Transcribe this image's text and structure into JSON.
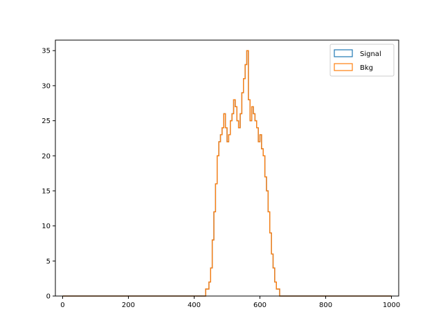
{
  "chart_data": {
    "type": "histogram",
    "title": "",
    "xlabel": "",
    "ylabel": "",
    "xlim": [
      -22,
      1022
    ],
    "ylim": [
      0,
      36.5
    ],
    "xticks": [
      0,
      200,
      400,
      600,
      800,
      1000
    ],
    "yticks": [
      0,
      5,
      10,
      15,
      20,
      25,
      30,
      35
    ],
    "grid": false,
    "legend_position": "top-right",
    "series": [
      {
        "name": "Signal",
        "color": "#1f77b4",
        "x": [
          430,
          435,
          440,
          445,
          450,
          455,
          460,
          465,
          470,
          475,
          480,
          485,
          490,
          495,
          500,
          505,
          510,
          515,
          520,
          525,
          530,
          535,
          540,
          545,
          550,
          555,
          560,
          565,
          570,
          575,
          580,
          585,
          590,
          595,
          600,
          605,
          610,
          615,
          620,
          625,
          630,
          635,
          640,
          645,
          650,
          655,
          660
        ],
        "values": [
          0,
          1,
          1,
          2,
          4,
          8,
          12,
          16,
          20,
          22,
          23,
          24,
          26,
          24,
          22,
          23,
          25,
          26,
          28,
          27,
          25,
          24,
          26,
          29,
          31,
          33,
          35,
          28,
          25,
          27,
          26,
          25,
          24,
          22,
          23,
          21,
          20,
          17,
          15,
          12,
          9,
          6,
          4,
          2,
          1,
          1,
          0
        ]
      },
      {
        "name": "Bkg",
        "color": "#ff7f0e",
        "x": [
          430,
          435,
          440,
          445,
          450,
          455,
          460,
          465,
          470,
          475,
          480,
          485,
          490,
          495,
          500,
          505,
          510,
          515,
          520,
          525,
          530,
          535,
          540,
          545,
          550,
          555,
          560,
          565,
          570,
          575,
          580,
          585,
          590,
          595,
          600,
          605,
          610,
          615,
          620,
          625,
          630,
          635,
          640,
          645,
          650,
          655,
          660
        ],
        "values": [
          0,
          1,
          1,
          2,
          4,
          8,
          12,
          16,
          20,
          22,
          23,
          24,
          26,
          24,
          22,
          23,
          25,
          26,
          28,
          27,
          25,
          24,
          26,
          29,
          31,
          33,
          35,
          28,
          25,
          27,
          26,
          25,
          24,
          22,
          23,
          21,
          20,
          17,
          15,
          12,
          9,
          6,
          4,
          2,
          1,
          1,
          0
        ]
      }
    ]
  }
}
